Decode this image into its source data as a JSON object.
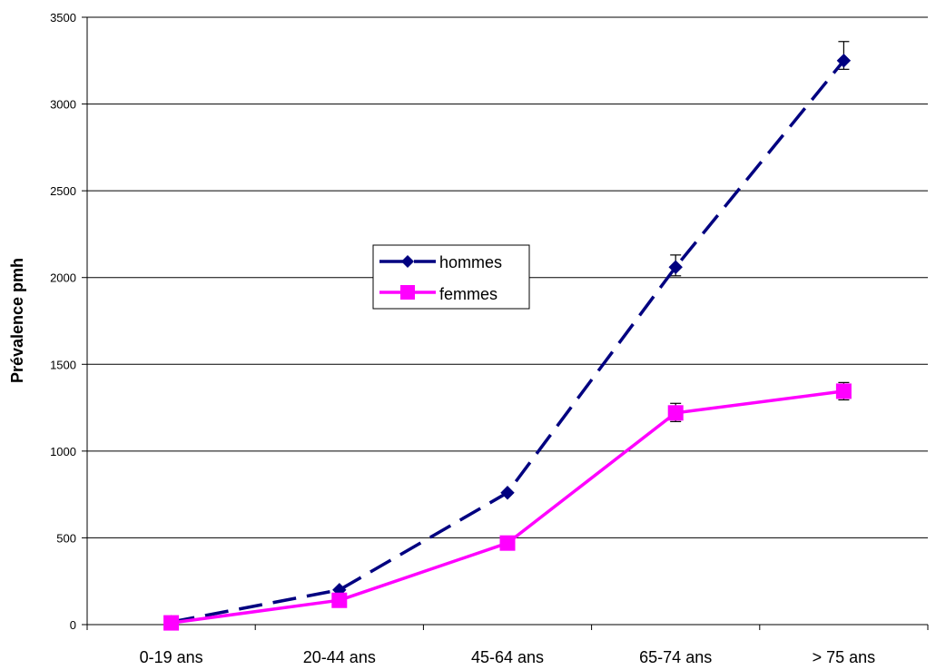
{
  "chart_data": {
    "type": "line",
    "title": "",
    "xlabel": "",
    "ylabel": "Prévalence  pmh",
    "categories": [
      "0-19 ans",
      "20-44 ans",
      "45-64 ans",
      "65-74 ans",
      "> 75 ans"
    ],
    "ylim": [
      0,
      3500
    ],
    "yticks": [
      0,
      500,
      1000,
      1500,
      2000,
      2500,
      3000,
      3500
    ],
    "grid": true,
    "legend_position": "center",
    "series": [
      {
        "name": "hommes",
        "values": [
          15,
          200,
          760,
          2060,
          3250
        ],
        "error": [
          [
            0,
            0
          ],
          [
            0,
            0
          ],
          [
            0,
            0
          ],
          [
            50,
            70
          ],
          [
            50,
            110
          ]
        ],
        "color": "#000080",
        "marker": "diamond",
        "line_style": "dashed"
      },
      {
        "name": "femmes",
        "values": [
          10,
          140,
          470,
          1220,
          1345
        ],
        "error": [
          [
            0,
            0
          ],
          [
            0,
            0
          ],
          [
            0,
            0
          ],
          [
            50,
            55
          ],
          [
            50,
            50
          ]
        ],
        "color": "#FF00FF",
        "marker": "square",
        "line_style": "solid"
      }
    ]
  }
}
